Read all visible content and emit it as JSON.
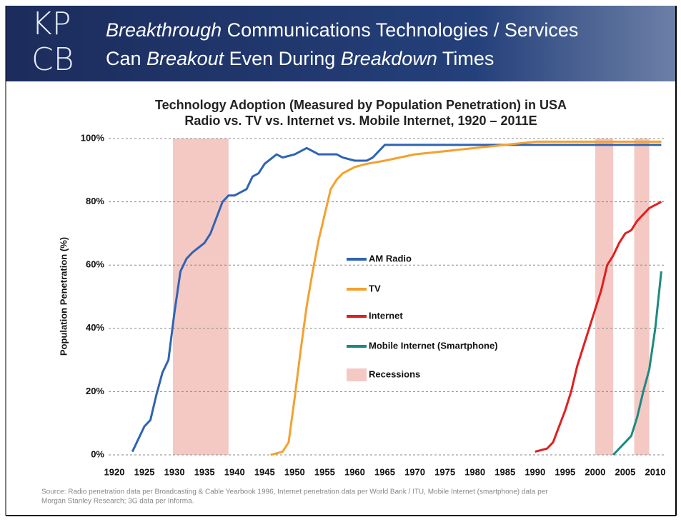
{
  "header": {
    "logo": [
      "KP",
      "CB"
    ],
    "title_lines": [
      [
        {
          "text": "Breakthrough",
          "italic": true
        },
        {
          "text": "Communications Technologies / Services",
          "italic": false
        }
      ],
      [
        {
          "text": "Can",
          "italic": false
        },
        {
          "text": "Breakout",
          "italic": true
        },
        {
          "text": "Even During",
          "italic": false
        },
        {
          "text": "Breakdown",
          "italic": true
        },
        {
          "text": "Times",
          "italic": false
        }
      ]
    ]
  },
  "chart_data": {
    "type": "line",
    "title_lines": [
      "Technology Adoption (Measured by Population Penetration) in USA",
      "Radio vs. TV vs. Internet vs. Mobile Internet, 1920 – 2011E"
    ],
    "y_label": "Population Penetration (%)",
    "xlim": [
      1919,
      2012.5
    ],
    "xticks": [
      1920,
      1925,
      1930,
      1935,
      1940,
      1945,
      1950,
      1955,
      1960,
      1965,
      1970,
      1975,
      1980,
      1985,
      1990,
      1995,
      2000,
      2005,
      2010
    ],
    "ylim": [
      0,
      100
    ],
    "yticks": [
      {
        "value": 0,
        "label": "0%"
      },
      {
        "value": 20,
        "label": "20%"
      },
      {
        "value": 40,
        "label": "40%"
      },
      {
        "value": 60,
        "label": "60%"
      },
      {
        "value": 80,
        "label": "80%"
      },
      {
        "value": 100,
        "label": "100%"
      }
    ],
    "grid": true,
    "series": [
      {
        "name": "AM Radio",
        "color": "#2f63b3",
        "x": [
          1923,
          1925,
          1926,
          1927,
          1928,
          1929,
          1930,
          1931,
          1932,
          1933,
          1935,
          1936,
          1937,
          1938,
          1939,
          1940,
          1941,
          1942,
          1943,
          1944,
          1945,
          1947,
          1948,
          1950,
          1952,
          1953,
          1954,
          1956,
          1957,
          1958,
          1960,
          1962,
          1963,
          1965,
          2011
        ],
        "values": [
          1,
          9,
          11,
          19,
          26,
          30,
          45,
          58,
          62,
          64,
          67,
          70,
          75,
          80,
          82,
          82,
          83,
          84,
          88,
          89,
          92,
          95,
          94,
          95,
          97,
          96,
          95,
          95,
          95,
          94,
          93,
          93,
          94,
          98,
          98
        ]
      },
      {
        "name": "TV",
        "color": "#f4a12f",
        "x": [
          1946,
          1948,
          1949,
          1950,
          1951,
          1952,
          1953,
          1954,
          1955,
          1956,
          1957,
          1958,
          1960,
          1962,
          1965,
          1970,
          1975,
          1980,
          1985,
          1990,
          2011
        ],
        "values": [
          0,
          1,
          4,
          18,
          33,
          47,
          58,
          68,
          76,
          84,
          87,
          89,
          91,
          92,
          93,
          95,
          96,
          97,
          98,
          99,
          99
        ]
      },
      {
        "name": "Internet",
        "color": "#e11f1f",
        "x": [
          1990,
          1992,
          1993,
          1994,
          1995,
          1996,
          1997,
          1998,
          1999,
          2000,
          2001,
          2002,
          2003,
          2004,
          2005,
          2006,
          2007,
          2008,
          2009,
          2010,
          2011
        ],
        "values": [
          1,
          2,
          4,
          9,
          14,
          20,
          28,
          34,
          40,
          46,
          52,
          60,
          63,
          67,
          70,
          71,
          74,
          76,
          78,
          79,
          80
        ]
      },
      {
        "name": "Mobile Internet (Smartphone)",
        "color": "#1b8a80",
        "x": [
          2003,
          2004,
          2005,
          2006,
          2007,
          2008,
          2009,
          2010,
          2011
        ],
        "values": [
          0,
          2,
          4,
          6,
          12,
          20,
          27,
          40,
          58
        ]
      }
    ],
    "recessions": {
      "name": "Recessions",
      "color": "#f4c9c4",
      "periods": [
        [
          1929.75,
          1939
        ],
        [
          2000,
          2003
        ],
        [
          2006.5,
          2009
        ]
      ]
    },
    "source_lines": [
      "Source: Radio penetration data per Broadcasting & Cable Yearbook 1996, Internet penetration data per World Bank / ITU, Mobile Internet (smartphone) data per",
      "Morgan Stanley Research; 3G data per Informa."
    ]
  }
}
